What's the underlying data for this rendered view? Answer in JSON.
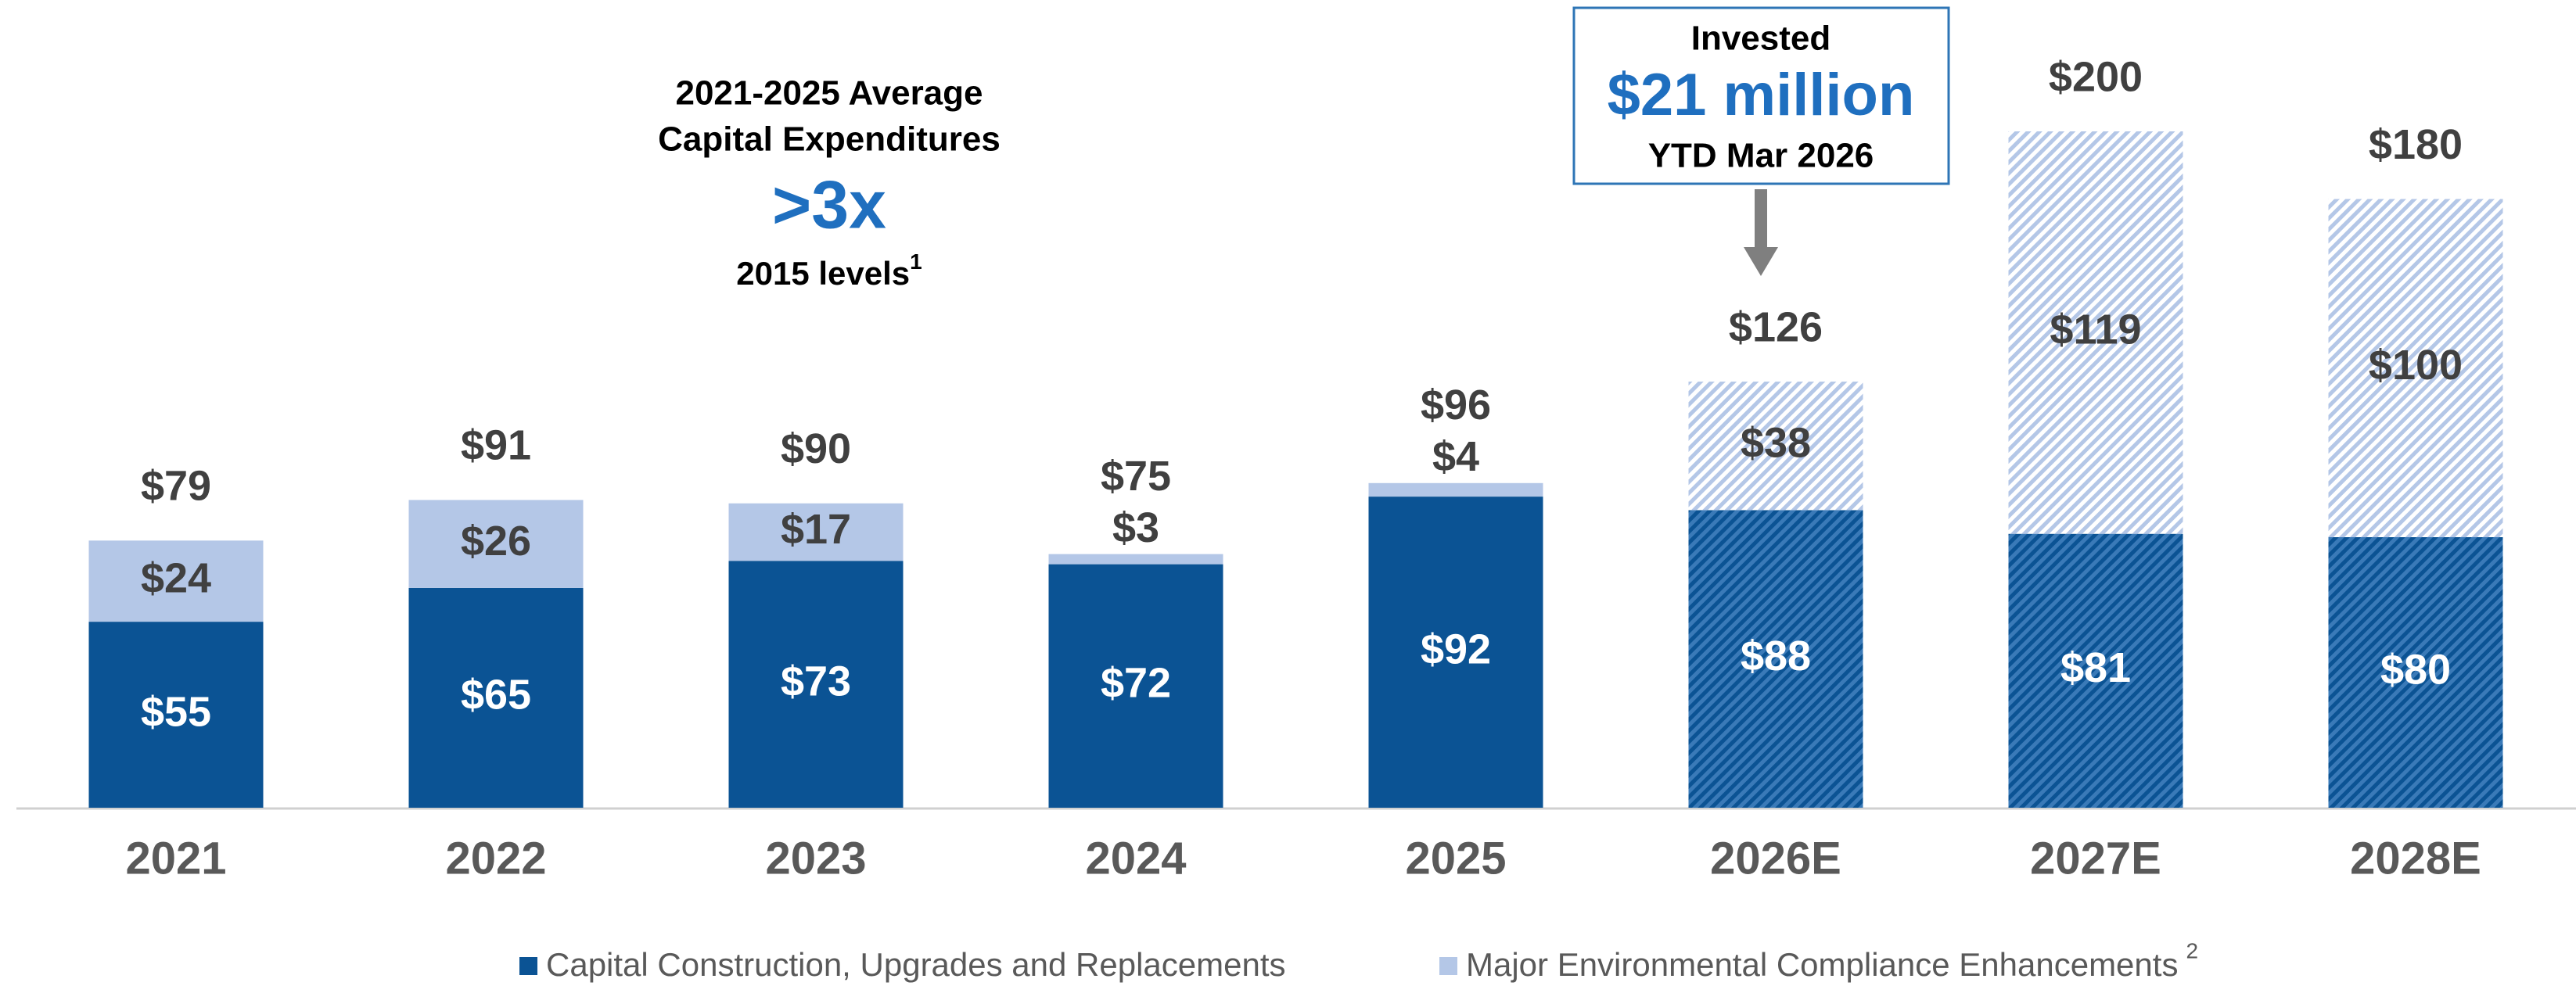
{
  "chart_data": {
    "type": "stacked_bar",
    "categories": [
      "2021",
      "2022",
      "2023",
      "2024",
      "2025",
      "2026E",
      "2027E",
      "2028E"
    ],
    "series": [
      {
        "name": "Capital Construction, Upgrades and Replacements",
        "color": "#0b5394",
        "values": [
          55,
          65,
          73,
          72,
          92,
          88,
          81,
          80
        ],
        "value_labels": [
          "$55",
          "$65",
          "$73",
          "$72",
          "$92",
          "$88",
          "$81",
          "$80"
        ]
      },
      {
        "name": "Major Environmental Compliance Enhancements",
        "color": "#b4c7e7",
        "footnote": "2",
        "values": [
          24,
          26,
          17,
          3,
          4,
          38,
          119,
          100
        ],
        "value_labels": [
          "$24",
          "$26",
          "$17",
          "$3",
          "$4",
          "$38",
          "$119",
          "$100"
        ]
      }
    ],
    "total_labels": [
      "$79",
      "$91",
      "$90",
      "$75",
      "$96",
      "$126",
      "$200",
      "$180"
    ],
    "hatched": [
      false,
      false,
      false,
      false,
      false,
      true,
      true,
      true
    ],
    "ylim": [
      0,
      200
    ],
    "callout": {
      "lines": [
        "2021-2025 Average",
        "Capital Expenditures"
      ],
      "highlight": ">3x",
      "note": "2015 levels",
      "note_ref": "1"
    },
    "invested_box": {
      "top": "Invested",
      "highlight": "$21 million",
      "bottom": "YTD Mar 2026"
    }
  }
}
